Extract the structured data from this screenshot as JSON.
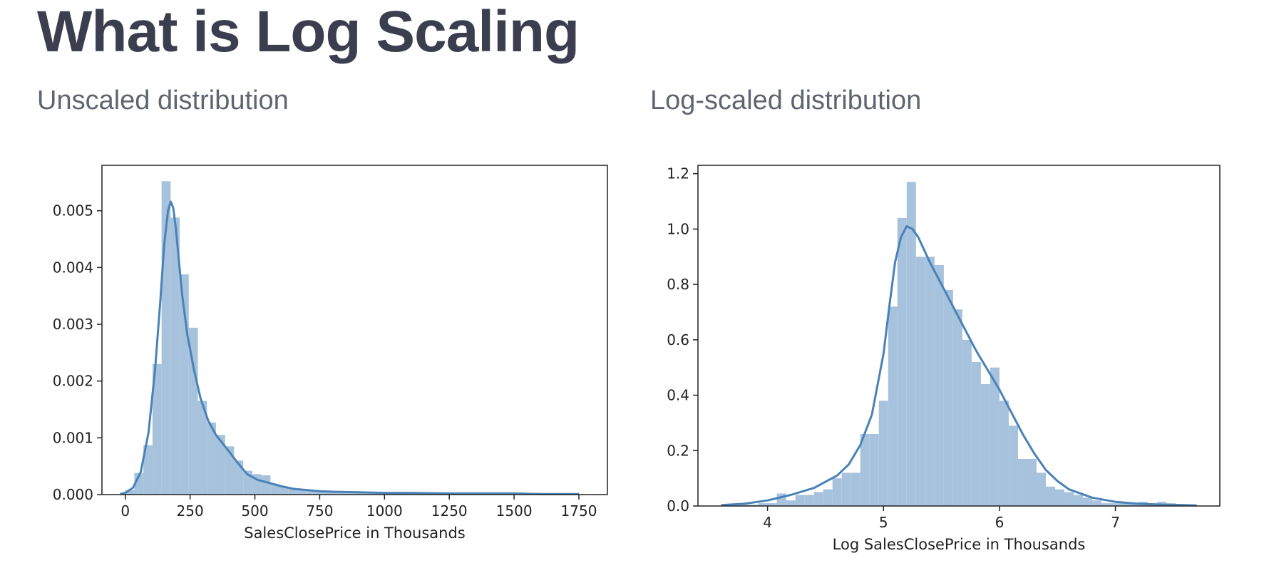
{
  "slide": {
    "title": "What is Log Scaling"
  },
  "colors": {
    "bar": "#a7c2dc",
    "kde": "#4a82b8",
    "frame": "#222222",
    "title": "#3b3e4e",
    "subtitle": "#5f6470"
  },
  "chart_data": [
    {
      "id": "unscaled",
      "type": "bar",
      "subtitle": "Unscaled distribution",
      "xlabel": "SalesClosePrice in Thousands",
      "ylabel": "",
      "xlim": [
        -90,
        1860
      ],
      "ylim": [
        0,
        0.0058
      ],
      "xticks": [
        0,
        250,
        500,
        750,
        1000,
        1250,
        1500,
        1750
      ],
      "xtick_labels": [
        "0",
        "250",
        "500",
        "750",
        "1000",
        "1250",
        "1500",
        "1750"
      ],
      "yticks": [
        0,
        0.001,
        0.002,
        0.003,
        0.004,
        0.005
      ],
      "ytick_labels": [
        "0.000",
        "0.001",
        "0.002",
        "0.003",
        "0.004",
        "0.005"
      ],
      "grid": false,
      "bin_edges": [
        0,
        35,
        70,
        105,
        140,
        175,
        210,
        245,
        280,
        315,
        350,
        385,
        420,
        455,
        490,
        525,
        560,
        595,
        630,
        665,
        700,
        735,
        770,
        805,
        840,
        875,
        910,
        945,
        980,
        1015,
        1050,
        1085,
        1120,
        1155,
        1190,
        1225,
        1260,
        1295,
        1330,
        1365,
        1400,
        1435,
        1470,
        1505,
        1540,
        1575,
        1610,
        1645,
        1680,
        1715,
        1750
      ],
      "histogram": [
        8e-05,
        0.00038,
        0.00087,
        0.0023,
        0.00552,
        0.00488,
        0.00388,
        0.00294,
        0.00165,
        0.00127,
        0.00105,
        0.00085,
        0.0006,
        0.00042,
        0.00036,
        0.00034,
        0.00018,
        0.00014,
        0.0001,
        0.0001,
        8e-05,
        7e-05,
        6e-05,
        5e-05,
        4e-05,
        4e-05,
        4e-05,
        3e-05,
        3e-05,
        3e-05,
        2e-05,
        2e-05,
        2e-05,
        2e-05,
        2e-05,
        2e-05,
        2e-05,
        2e-05,
        2e-05,
        2e-05,
        2e-05,
        2e-05,
        2e-05,
        1e-05,
        2e-05,
        3e-05,
        2e-05,
        2e-05,
        1e-05,
        1e-05
      ],
      "kde": {
        "x": [
          -20,
          0,
          30,
          60,
          90,
          115,
          135,
          150,
          165,
          175,
          185,
          195,
          205,
          220,
          240,
          265,
          290,
          320,
          350,
          390,
          430,
          470,
          510,
          560,
          600,
          650,
          700,
          750,
          800,
          900,
          1000,
          1100,
          1250,
          1400,
          1500,
          1600,
          1700,
          1750
        ],
        "y": [
          1e-05,
          3e-05,
          0.00012,
          0.0004,
          0.0011,
          0.0022,
          0.0034,
          0.0044,
          0.005,
          0.00516,
          0.00505,
          0.0047,
          0.0042,
          0.0035,
          0.0028,
          0.0022,
          0.0017,
          0.0013,
          0.00105,
          0.00082,
          0.00058,
          0.00036,
          0.00026,
          0.0002,
          0.00015,
          0.0001,
          8e-05,
          6e-05,
          5e-05,
          4e-05,
          3e-05,
          3e-05,
          2e-05,
          2e-05,
          2e-05,
          1e-05,
          1e-05,
          1e-05
        ]
      }
    },
    {
      "id": "logscaled",
      "type": "bar",
      "subtitle": "Log-scaled distribution",
      "xlabel": "Log SalesClosePrice in Thousands",
      "ylabel": "",
      "xlim": [
        3.4,
        7.9
      ],
      "ylim": [
        0,
        1.23
      ],
      "xticks": [
        4,
        5,
        6,
        7
      ],
      "xtick_labels": [
        "4",
        "5",
        "6",
        "7"
      ],
      "yticks": [
        0,
        0.2,
        0.4,
        0.6,
        0.8,
        1.0,
        1.2
      ],
      "ytick_labels": [
        "0.0",
        "0.2",
        "0.4",
        "0.6",
        "0.8",
        "1.0",
        "1.2"
      ],
      "grid": false,
      "bin_edges": [
        3.6,
        3.68,
        3.76,
        3.84,
        3.92,
        4.0,
        4.08,
        4.16,
        4.24,
        4.32,
        4.4,
        4.48,
        4.56,
        4.64,
        4.72,
        4.8,
        4.88,
        4.96,
        5.04,
        5.12,
        5.2,
        5.28,
        5.36,
        5.44,
        5.52,
        5.6,
        5.68,
        5.76,
        5.84,
        5.92,
        6.0,
        6.08,
        6.16,
        6.24,
        6.32,
        6.4,
        6.48,
        6.56,
        6.64,
        6.72,
        6.8,
        6.88,
        6.96,
        7.04,
        7.12,
        7.2,
        7.28,
        7.36,
        7.44,
        7.52,
        7.6,
        7.68
      ],
      "histogram": [
        0.005,
        0.005,
        0.005,
        0.005,
        0.01,
        0.01,
        0.045,
        0.02,
        0.04,
        0.04,
        0.05,
        0.06,
        0.1,
        0.12,
        0.12,
        0.26,
        0.26,
        0.38,
        0.72,
        1.04,
        1.17,
        0.9,
        0.9,
        0.87,
        0.78,
        0.71,
        0.6,
        0.52,
        0.44,
        0.5,
        0.38,
        0.29,
        0.17,
        0.17,
        0.12,
        0.07,
        0.06,
        0.05,
        0.04,
        0.03,
        0.02,
        0.01,
        0.01,
        0.01,
        0.01,
        0.015,
        0.01,
        0.015,
        0.01,
        0.005,
        0.005
      ],
      "kde": {
        "x": [
          3.6,
          3.8,
          4.0,
          4.2,
          4.4,
          4.6,
          4.7,
          4.8,
          4.9,
          5.0,
          5.05,
          5.1,
          5.15,
          5.2,
          5.25,
          5.3,
          5.4,
          5.5,
          5.6,
          5.7,
          5.8,
          5.9,
          6.0,
          6.1,
          6.2,
          6.3,
          6.4,
          6.5,
          6.6,
          6.8,
          7.0,
          7.2,
          7.4,
          7.6,
          7.7
        ],
        "y": [
          0.003,
          0.008,
          0.02,
          0.04,
          0.065,
          0.11,
          0.15,
          0.22,
          0.33,
          0.55,
          0.72,
          0.88,
          0.97,
          1.01,
          1.0,
          0.97,
          0.88,
          0.8,
          0.72,
          0.64,
          0.56,
          0.49,
          0.42,
          0.34,
          0.26,
          0.19,
          0.13,
          0.09,
          0.06,
          0.03,
          0.015,
          0.008,
          0.005,
          0.003,
          0.002
        ]
      }
    }
  ]
}
